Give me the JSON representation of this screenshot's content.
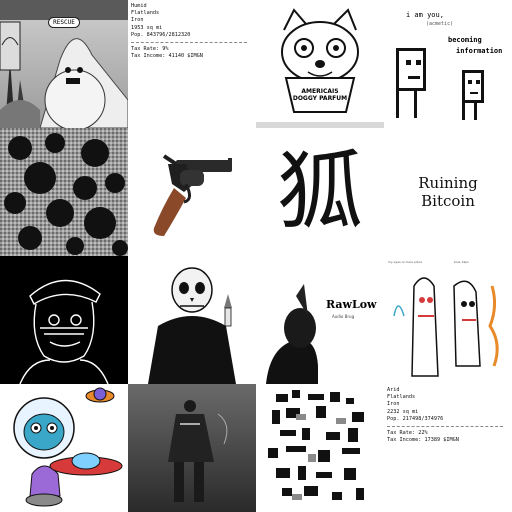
{
  "tiles": {
    "t1": {
      "stamp": "RESCUE"
    },
    "t2": {
      "lines": [
        "Humid",
        "Flatlands",
        "Iron",
        "1953 sq mi",
        "Pop. 843796/2812320"
      ],
      "tax_rate": "Tax Rate: 9%",
      "tax_income": "Tax Income: 41140 $IMGN"
    },
    "t3": {
      "label_line1": "AMERICAIS",
      "label_line2": "DOGGY PARFUM"
    },
    "t4": {
      "line1": "i am you,",
      "line2": "(acmetic)",
      "line3": "becoming",
      "line4": "information"
    },
    "t7": {
      "glyph": "狐"
    },
    "t8": {
      "line1": "Ruining",
      "line2": "Bitcoin"
    },
    "t11": {
      "title": "RawLow",
      "subtitle": "Audio Brug"
    },
    "t12": {
      "caption_left": "my eyes on here place",
      "caption_right": "blue 19px"
    },
    "t16": {
      "lines": [
        "Arid",
        "Flatlands",
        "Iron",
        "2232 sq mi",
        "Pop. 217498/374976"
      ],
      "tax_rate": "Tax Rate: 22%",
      "tax_income": "Tax Income: 17389 $IMGN"
    }
  },
  "colors": {
    "black": "#000000",
    "white": "#ffffff",
    "gun_metal": "#2a2a2a",
    "wood": "#8a4a2a",
    "alien_blue": "#3aa6c8",
    "ufo_red": "#d63a3a",
    "planet_orange": "#e88a2a"
  }
}
